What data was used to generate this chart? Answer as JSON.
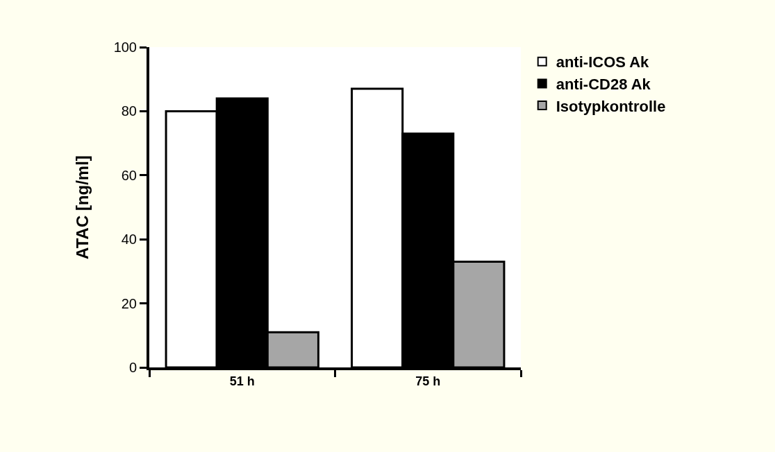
{
  "chart_data": {
    "type": "bar",
    "ylabel": "ATAC [ng/ml]",
    "categories": [
      "51 h",
      "75 h"
    ],
    "series": [
      {
        "name": "anti-ICOS Ak",
        "color": "#ffffff",
        "values": [
          80,
          87
        ]
      },
      {
        "name": "anti-CD28 Ak",
        "color": "#000000",
        "values": [
          84,
          73
        ]
      },
      {
        "name": "Isotypkontrolle",
        "color": "#a6a6a6",
        "values": [
          11,
          33
        ]
      }
    ],
    "ylim": [
      0,
      100
    ],
    "yticks": [
      0,
      20,
      40,
      60,
      80,
      100
    ],
    "legend": "top right"
  }
}
